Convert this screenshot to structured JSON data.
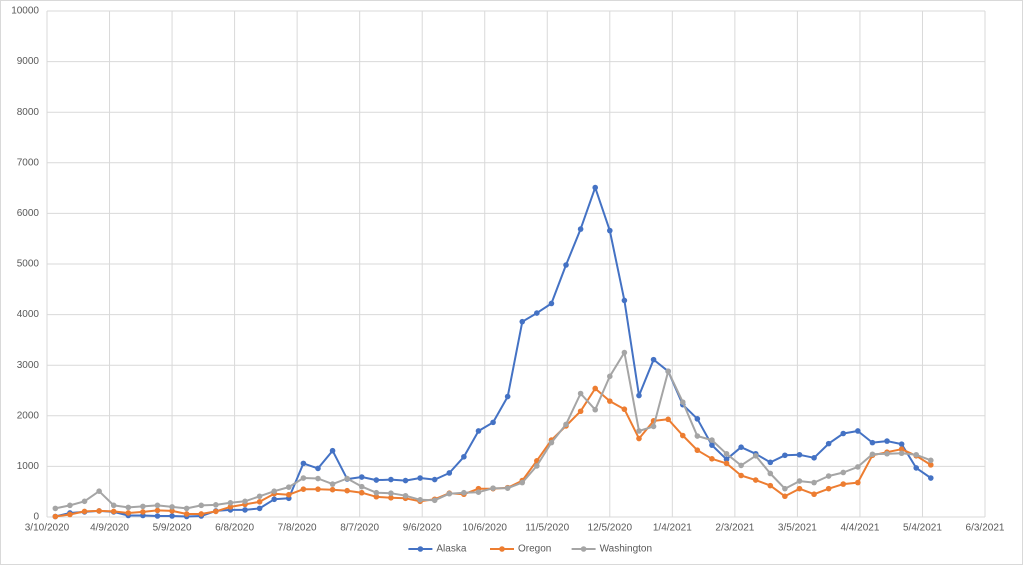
{
  "chart_data": {
    "type": "line",
    "x": [
      "3/14/2020",
      "3/21/2020",
      "3/28/2020",
      "4/4/2020",
      "4/11/2020",
      "4/18/2020",
      "4/25/2020",
      "5/2/2020",
      "5/9/2020",
      "5/16/2020",
      "5/23/2020",
      "5/30/2020",
      "6/6/2020",
      "6/13/2020",
      "6/20/2020",
      "6/27/2020",
      "7/4/2020",
      "7/11/2020",
      "7/18/2020",
      "7/25/2020",
      "8/1/2020",
      "8/8/2020",
      "8/15/2020",
      "8/22/2020",
      "8/29/2020",
      "9/5/2020",
      "9/12/2020",
      "9/19/2020",
      "9/26/2020",
      "10/3/2020",
      "10/10/2020",
      "10/17/2020",
      "10/24/2020",
      "10/31/2020",
      "11/7/2020",
      "11/14/2020",
      "11/21/2020",
      "11/28/2020",
      "12/5/2020",
      "12/12/2020",
      "12/19/2020",
      "12/26/2020",
      "1/2/2021",
      "1/9/2021",
      "1/16/2021",
      "1/23/2021",
      "1/30/2021",
      "2/6/2021",
      "2/13/2021",
      "2/20/2021",
      "2/27/2021",
      "3/6/2021",
      "3/13/2021",
      "3/20/2021",
      "3/27/2021",
      "4/3/2021",
      "4/10/2021",
      "4/17/2021",
      "4/24/2021",
      "5/1/2021",
      "5/8/2021"
    ],
    "series": [
      {
        "name": "Alaska",
        "color": "#4472c4",
        "values": [
          10,
          80,
          100,
          120,
          100,
          30,
          30,
          20,
          20,
          10,
          20,
          120,
          140,
          140,
          170,
          350,
          370,
          1060,
          960,
          1310,
          750,
          790,
          730,
          740,
          720,
          770,
          740,
          870,
          1190,
          1700,
          1870,
          2380,
          3860,
          4030,
          4220,
          4980,
          5690,
          6510,
          5660,
          4280,
          2400,
          3110,
          2880,
          2220,
          1940,
          1420,
          1140,
          1380,
          1250,
          1080,
          1220,
          1230,
          1170,
          1450,
          1650,
          1700,
          1470,
          1500,
          1440,
          970,
          770
        ]
      },
      {
        "name": "Oregon",
        "color": "#ed7d31",
        "values": [
          10,
          50,
          110,
          120,
          110,
          80,
          100,
          130,
          120,
          60,
          60,
          110,
          200,
          250,
          300,
          460,
          440,
          550,
          550,
          540,
          520,
          480,
          400,
          380,
          370,
          310,
          350,
          470,
          450,
          560,
          560,
          580,
          720,
          1110,
          1520,
          1800,
          2090,
          2540,
          2290,
          2130,
          1550,
          1900,
          1930,
          1610,
          1320,
          1150,
          1060,
          820,
          730,
          620,
          410,
          560,
          450,
          560,
          650,
          680,
          1220,
          1280,
          1340,
          1210,
          1030
        ]
      },
      {
        "name": "Washington",
        "color": "#a5a5a5",
        "values": [
          170,
          230,
          310,
          510,
          230,
          190,
          210,
          230,
          200,
          170,
          230,
          240,
          280,
          310,
          410,
          510,
          590,
          770,
          760,
          650,
          760,
          600,
          480,
          470,
          420,
          340,
          330,
          460,
          480,
          490,
          570,
          570,
          680,
          1010,
          1470,
          1830,
          2440,
          2120,
          2780,
          3250,
          1700,
          1790,
          2880,
          2270,
          1600,
          1520,
          1250,
          1020,
          1210,
          860,
          560,
          710,
          680,
          810,
          880,
          990,
          1240,
          1250,
          1260,
          1230,
          1120
        ]
      }
    ],
    "xlim": [
      "3/10/2020",
      "6/3/2021"
    ],
    "xticks": [
      "3/10/2020",
      "4/9/2020",
      "5/9/2020",
      "6/8/2020",
      "7/8/2020",
      "8/7/2020",
      "9/6/2020",
      "10/6/2020",
      "11/5/2020",
      "12/5/2020",
      "1/4/2021",
      "2/3/2021",
      "3/5/2021",
      "4/4/2021",
      "5/4/2021",
      "6/3/2021"
    ],
    "ylim": [
      0,
      10000
    ],
    "yticks": [
      0,
      1000,
      2000,
      3000,
      4000,
      5000,
      6000,
      7000,
      8000,
      9000,
      10000
    ],
    "grid": true,
    "legend": "bottom"
  }
}
